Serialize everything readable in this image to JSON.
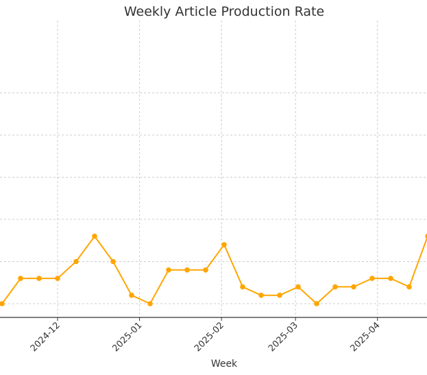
{
  "chart_data": {
    "type": "line",
    "title": "Weekly Article Production Rate",
    "xlabel": "Week",
    "ylabel": "",
    "x_tick_labels": [
      "2024-12",
      "2025-01",
      "2025-02",
      "2025-03",
      "2025-04"
    ],
    "ylim": [
      0.8,
      3.2
    ],
    "x": [
      "2024-11-10",
      "2024-11-17",
      "2024-11-24",
      "2024-12-01",
      "2024-12-08",
      "2024-12-15",
      "2024-12-22",
      "2024-12-29",
      "2025-01-05",
      "2025-01-12",
      "2025-01-19",
      "2025-01-26",
      "2025-02-02",
      "2025-02-09",
      "2025-02-16",
      "2025-02-23",
      "2025-03-02",
      "2025-03-09",
      "2025-03-16",
      "2025-03-23",
      "2025-03-30",
      "2025-04-06",
      "2025-04-13",
      "2025-04-20"
    ],
    "series": [
      {
        "values": [
          1.0,
          1.3,
          1.3,
          1.3,
          1.5,
          1.8,
          1.5,
          1.1,
          1.0,
          1.4,
          1.4,
          1.4,
          1.7,
          1.2,
          1.1,
          1.1,
          1.2,
          1.0,
          1.2,
          1.2,
          1.3,
          1.3,
          1.2,
          1.8
        ],
        "color": "#FFA500"
      }
    ],
    "grid": true,
    "legend": "none"
  }
}
